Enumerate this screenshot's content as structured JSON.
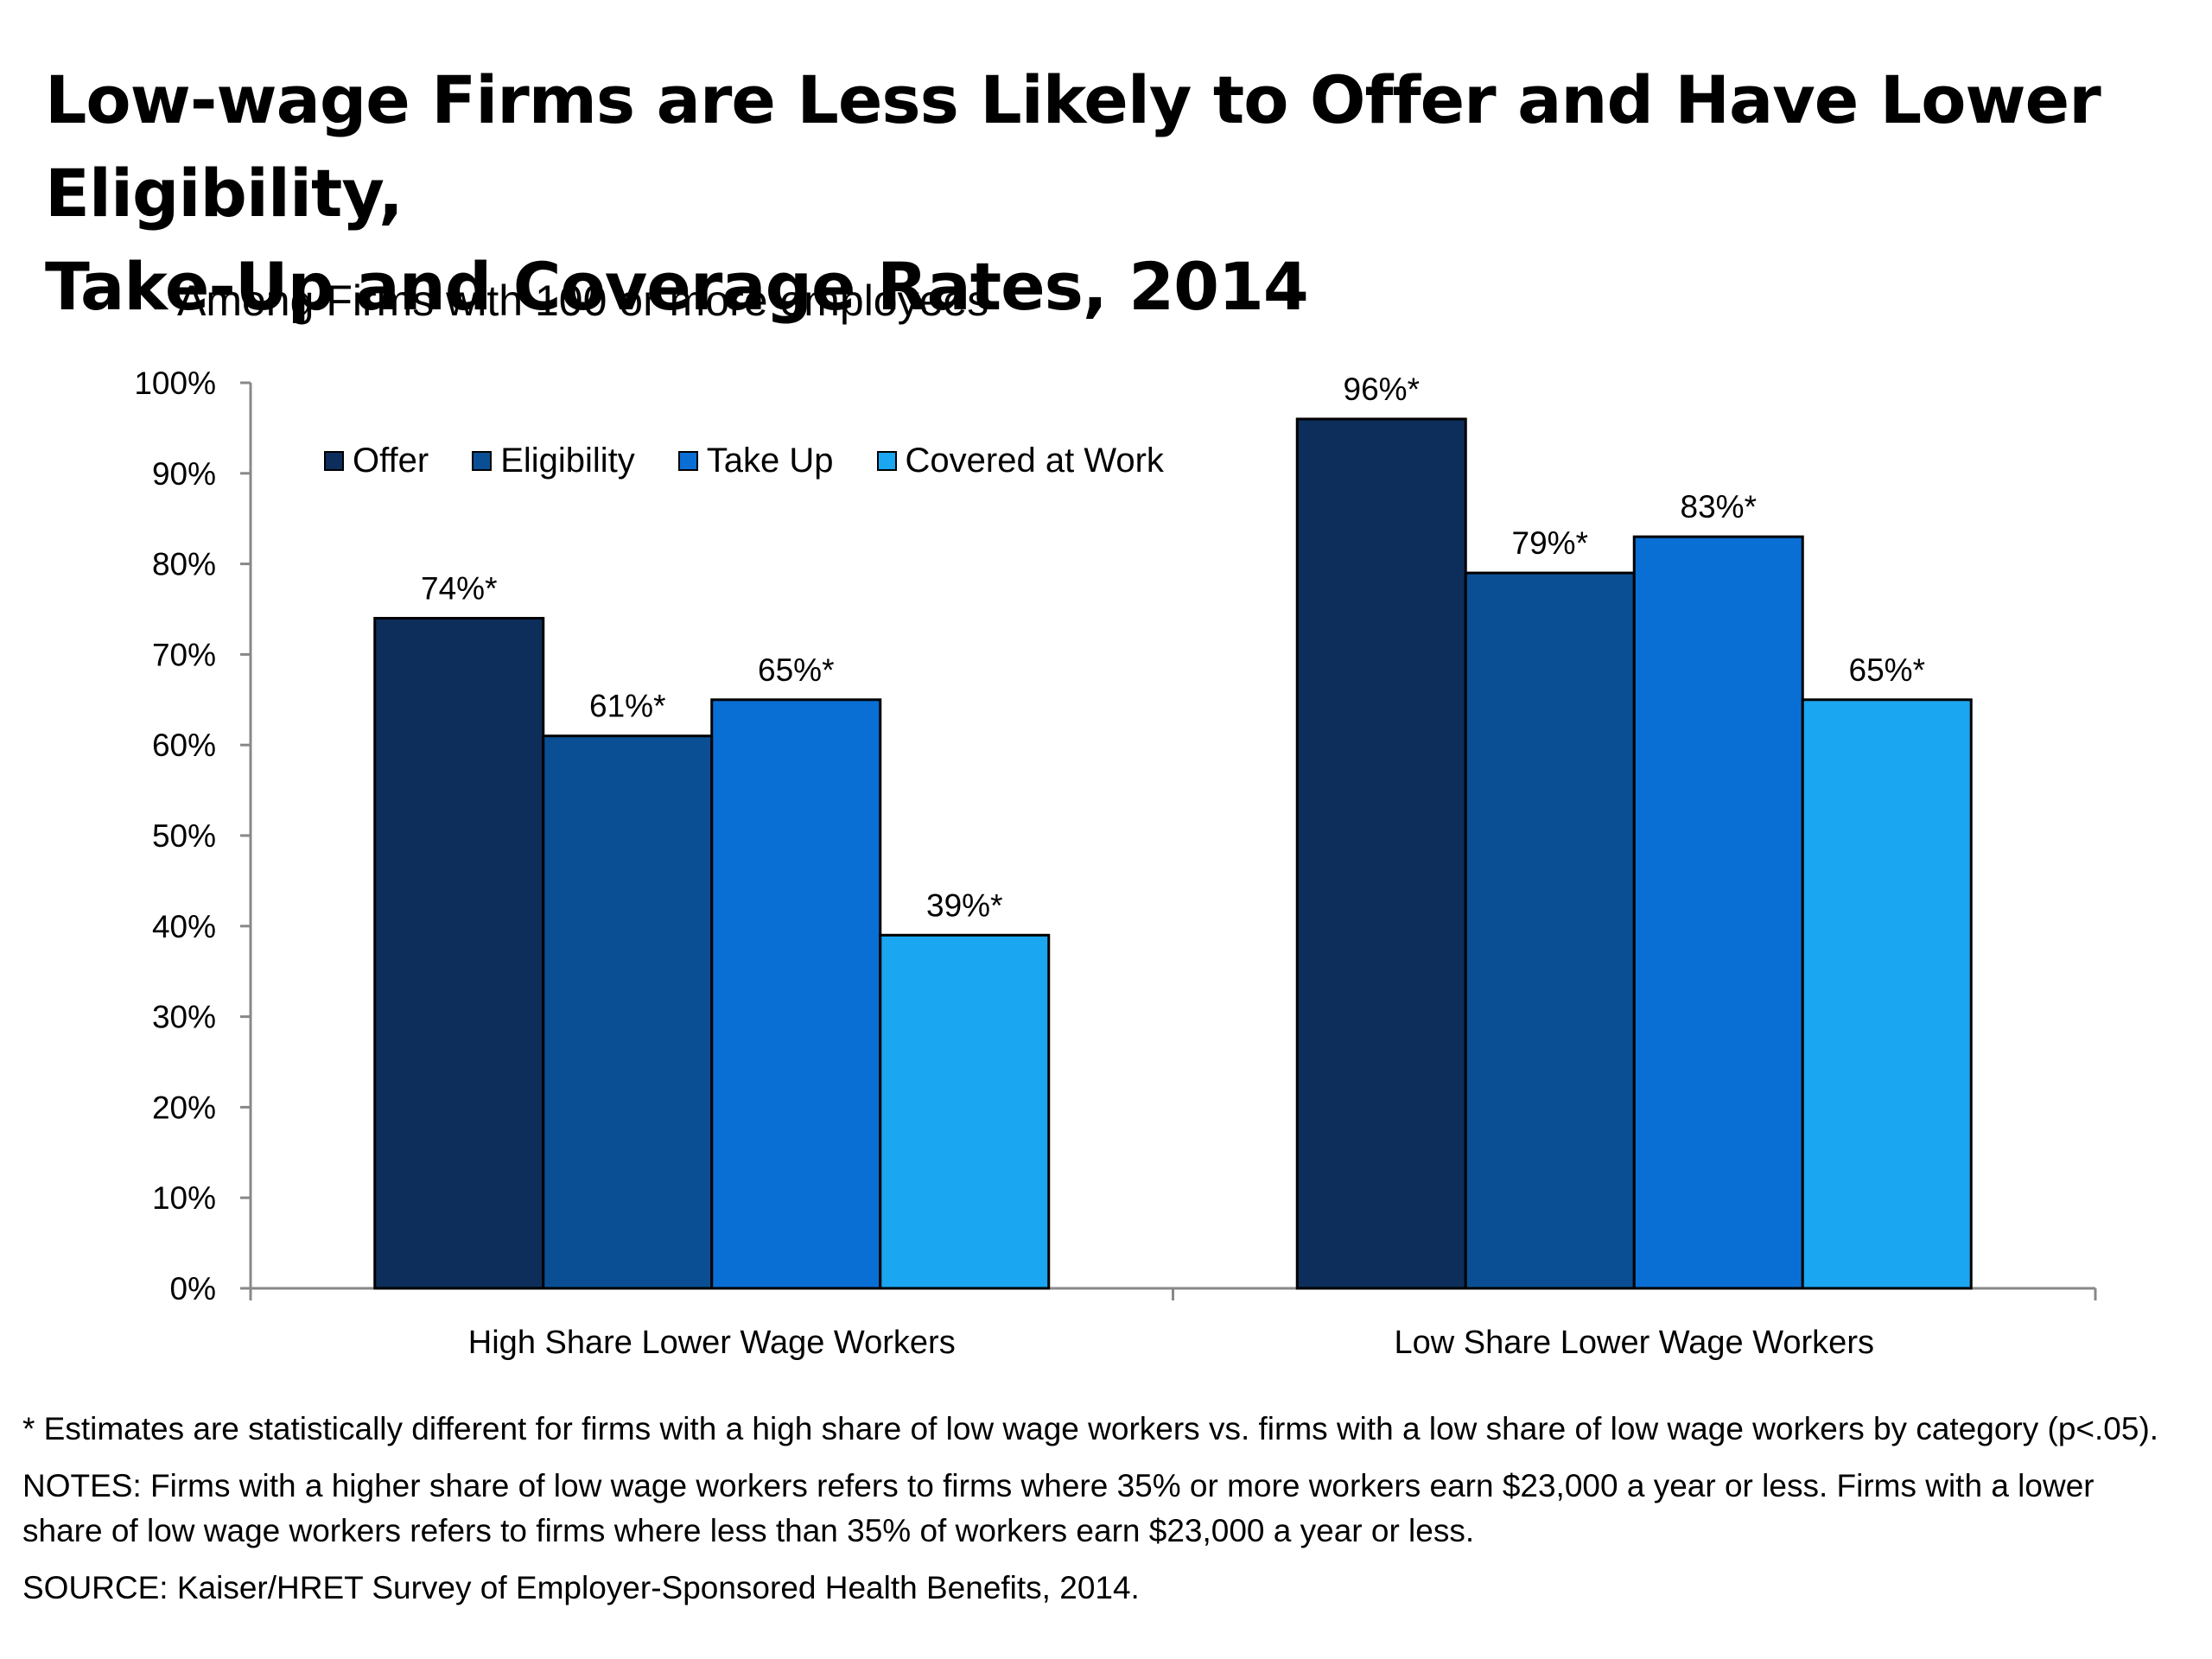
{
  "title_line1": "Low-wage Firms are Less Likely to Offer and Have Lower Eligibility,",
  "title_line2": "Take-Up and Coverage Rates, 2014",
  "subtitle": "Among Firms with 100 or more employees",
  "colors": {
    "offer": "#0d2e5a",
    "eligibility": "#0a4f94",
    "take_up": "#0a6fd4",
    "covered": "#1aa6f0",
    "axis": "#888888"
  },
  "chart_data": {
    "type": "bar",
    "title": "Low-wage Firms are Less Likely to Offer and Have Lower Eligibility, Take-Up and Coverage Rates, 2014",
    "subtitle": "Among Firms with 100 or more employees",
    "categories": [
      "High Share Lower Wage Workers",
      "Low Share Lower Wage Workers"
    ],
    "series": [
      {
        "name": "Offer",
        "values": [
          74,
          96
        ],
        "labels": [
          "74%*",
          "96%*"
        ]
      },
      {
        "name": "Eligibility",
        "values": [
          61,
          79
        ],
        "labels": [
          "61%*",
          "79%*"
        ]
      },
      {
        "name": "Take Up",
        "values": [
          65,
          83
        ],
        "labels": [
          "65%*",
          "83%*"
        ]
      },
      {
        "name": "Covered at Work",
        "values": [
          39,
          65
        ],
        "labels": [
          "39%*",
          "65%*"
        ]
      }
    ],
    "ylim": [
      0,
      100
    ],
    "yticks": [
      0,
      10,
      20,
      30,
      40,
      50,
      60,
      70,
      80,
      90,
      100
    ],
    "ytick_labels": [
      "0%",
      "10%",
      "20%",
      "30%",
      "40%",
      "50%",
      "60%",
      "70%",
      "80%",
      "90%",
      "100%"
    ],
    "xlabel": "",
    "ylabel": "",
    "legend_position": "top-left"
  },
  "notes": {
    "asterisk": "* Estimates are statistically different for firms with a high share of low wage workers vs. firms with a low share of low wage workers by category (p<.05).",
    "notes": "NOTES: Firms with a higher share of low wage workers refers to firms where 35% or more workers earn $23,000 a year or less. Firms with a lower share of low wage workers refers to firms where less than 35% of workers earn $23,000 a year or less.",
    "source": "SOURCE: Kaiser/HRET Survey of Employer-Sponsored Health Benefits, 2014."
  }
}
